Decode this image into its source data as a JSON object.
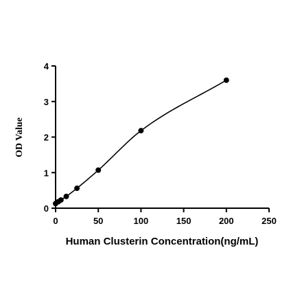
{
  "chart_data": {
    "type": "scatter",
    "title": "",
    "xlabel": "Human Clusterin Concentration(ng/mL)",
    "ylabel": "OD Value",
    "xlim": [
      0,
      250
    ],
    "ylim": [
      0,
      4
    ],
    "x_ticks": [
      "0",
      "50",
      "100",
      "150",
      "200",
      "250"
    ],
    "y_ticks": [
      "0",
      "1",
      "2",
      "3",
      "4"
    ],
    "grid": false,
    "legend": "none",
    "series": [
      {
        "x": [
          0,
          3.125,
          6.25,
          12.5,
          25,
          50,
          100,
          200
        ],
        "y": [
          0.13,
          0.18,
          0.23,
          0.33,
          0.56,
          1.07,
          2.18,
          3.6
        ],
        "fit_curve": true
      }
    ]
  }
}
